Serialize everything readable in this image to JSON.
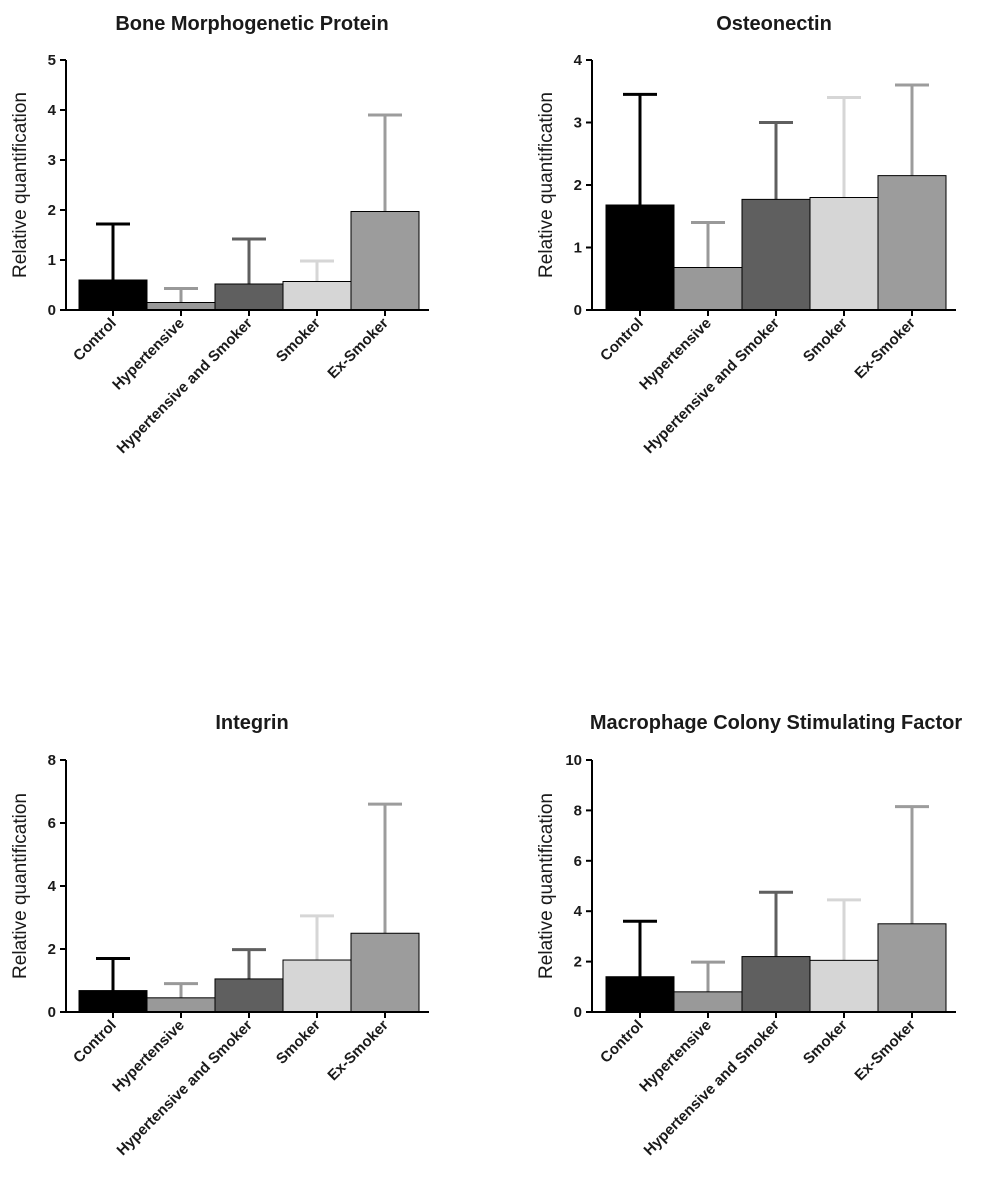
{
  "chart_data": [
    {
      "type": "bar",
      "title": "Bone Morphogenetic Protein",
      "ylabel": "Relative quantification",
      "xlabel": "",
      "ylim": [
        0,
        5
      ],
      "yticks": [
        "0",
        "1",
        "2",
        "3",
        "4",
        "5"
      ],
      "categories": [
        "Control",
        "Hypertensive",
        "Hypertensive and Smoker",
        "Smoker",
        "Ex-Smoker"
      ],
      "values": [
        0.6,
        0.15,
        0.52,
        0.57,
        1.97
      ],
      "error_upper": [
        1.72,
        0.43,
        1.42,
        0.98,
        3.9
      ],
      "colors": [
        "#000000",
        "#999999",
        "#5f5f5f",
        "#d6d6d6",
        "#9c9c9c"
      ],
      "grid": false,
      "legend": "none"
    },
    {
      "type": "bar",
      "title": "Osteonectin",
      "ylabel": "Relative quantification",
      "xlabel": "",
      "ylim": [
        0,
        4
      ],
      "yticks": [
        "0",
        "1",
        "2",
        "3",
        "4"
      ],
      "categories": [
        "Control",
        "Hypertensive",
        "Hypertensive and Smoker",
        "Smoker",
        "Ex-Smoker"
      ],
      "values": [
        1.68,
        0.68,
        1.77,
        1.8,
        2.15
      ],
      "error_upper": [
        3.45,
        1.4,
        3.0,
        3.4,
        3.6
      ],
      "colors": [
        "#000000",
        "#999999",
        "#5f5f5f",
        "#d6d6d6",
        "#9c9c9c"
      ],
      "grid": false,
      "legend": "none"
    },
    {
      "type": "bar",
      "title": "Integrin",
      "ylabel": "Relative quantification",
      "xlabel": "",
      "ylim": [
        0,
        8
      ],
      "yticks": [
        "0",
        "2",
        "4",
        "6",
        "8"
      ],
      "categories": [
        "Control",
        "Hypertensive",
        "Hypertensive and Smoker",
        "Smoker",
        "Ex-Smoker"
      ],
      "values": [
        0.68,
        0.45,
        1.05,
        1.65,
        2.5
      ],
      "error_upper": [
        1.7,
        0.9,
        1.98,
        3.05,
        6.6
      ],
      "colors": [
        "#000000",
        "#999999",
        "#5f5f5f",
        "#d6d6d6",
        "#9c9c9c"
      ],
      "grid": false,
      "legend": "none"
    },
    {
      "type": "bar",
      "title": "Macrophage Colony Stimulating Factor",
      "ylabel": "Relative quantification",
      "xlabel": "",
      "ylim": [
        0,
        10
      ],
      "yticks": [
        "0",
        "2",
        "4",
        "6",
        "8",
        "10"
      ],
      "categories": [
        "Control",
        "Hypertensive",
        "Hypertensive and Smoker",
        "Smoker",
        "Ex-Smoker"
      ],
      "values": [
        1.4,
        0.8,
        2.2,
        2.05,
        3.5
      ],
      "error_upper": [
        3.6,
        1.98,
        4.75,
        4.45,
        8.15
      ],
      "colors": [
        "#000000",
        "#999999",
        "#5f5f5f",
        "#d6d6d6",
        "#9c9c9c"
      ],
      "grid": false,
      "legend": "none"
    }
  ]
}
